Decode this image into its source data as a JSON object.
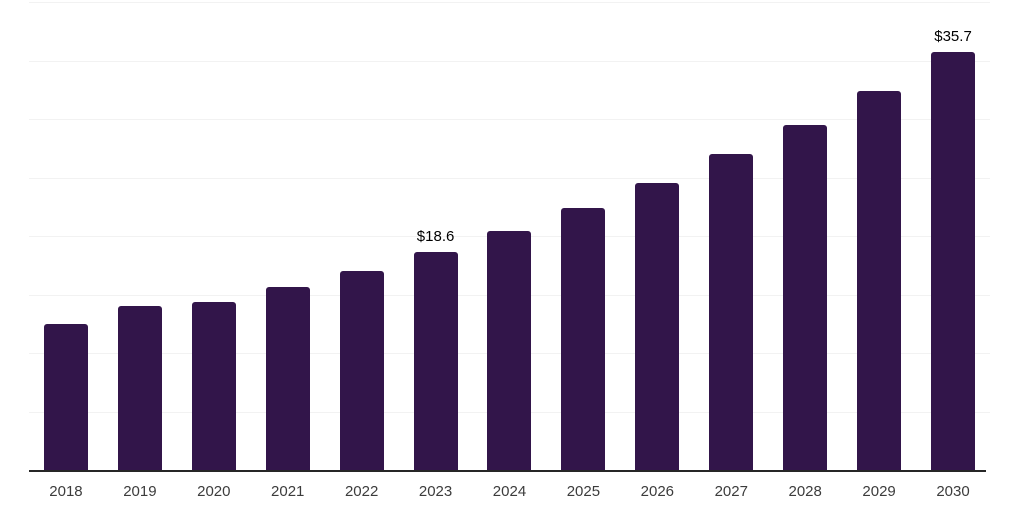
{
  "chart_data": {
    "type": "bar",
    "title": "",
    "xlabel": "",
    "ylabel": "",
    "categories": [
      "2018",
      "2019",
      "2020",
      "2021",
      "2022",
      "2023",
      "2024",
      "2025",
      "2026",
      "2027",
      "2028",
      "2029",
      "2030"
    ],
    "values": [
      12.5,
      14.0,
      14.4,
      15.6,
      17.0,
      18.6,
      20.4,
      22.4,
      24.5,
      27.0,
      29.5,
      32.4,
      35.7
    ],
    "data_labels": [
      "",
      "",
      "",
      "",
      "",
      "$18.6",
      "",
      "",
      "",
      "",
      "",
      "",
      "$35.7"
    ],
    "ylim": [
      0,
      40
    ],
    "gridline_step": 5,
    "grid": true,
    "y_axis_tick_labels_visible": false,
    "legend": "none"
  },
  "colors": {
    "bar": "#32154a",
    "gridline": "#f2f2f2",
    "axis_line": "#262626",
    "x_tick_label": "#3c3c3c",
    "data_label": "#000000",
    "background": "#ffffff"
  }
}
